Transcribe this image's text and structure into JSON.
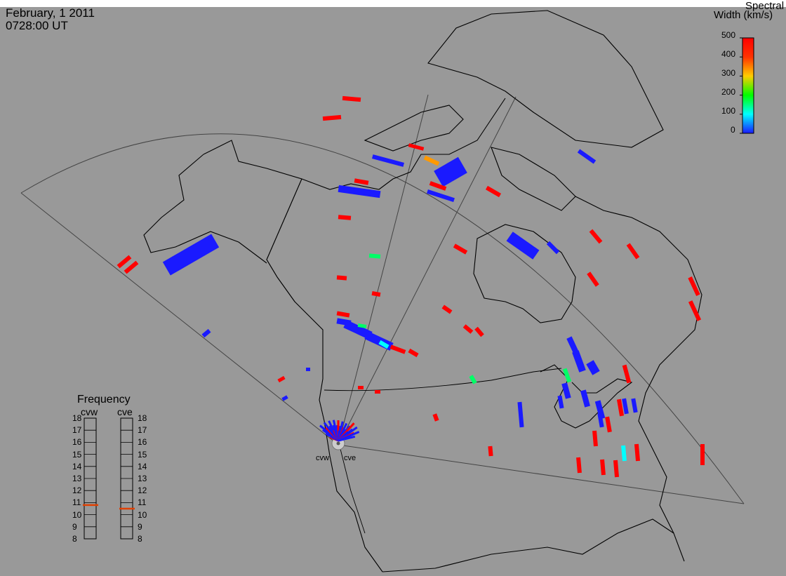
{
  "header": {
    "date": "February, 1 2011",
    "time": "0728:00 UT"
  },
  "colorbar": {
    "title_line1": "Spectral",
    "title_line2": "Width (km/s)",
    "ticks": [
      "500",
      "400",
      "300",
      "200",
      "100",
      "0"
    ],
    "range": [
      0,
      500
    ],
    "colors": [
      "#1a1aff",
      "#00ffff",
      "#00ff00",
      "#ffcc00",
      "#ff3300",
      "#ff0000"
    ]
  },
  "radars": [
    "cvw",
    "cve"
  ],
  "frequency": {
    "title": "Frequency",
    "columns": [
      "cvw",
      "cve"
    ],
    "scale": [
      "18",
      "17",
      "16",
      "15",
      "14",
      "13",
      "12",
      "11",
      "10",
      "9",
      "8"
    ],
    "values_mhz": {
      "cvw": 10.8,
      "cve": 10.5
    }
  },
  "cell_colors": {
    "low": "#1a1aff",
    "cyan": "#00ffff",
    "green": "#00ff66",
    "orange": "#ff9900",
    "high": "#ff0000"
  }
}
